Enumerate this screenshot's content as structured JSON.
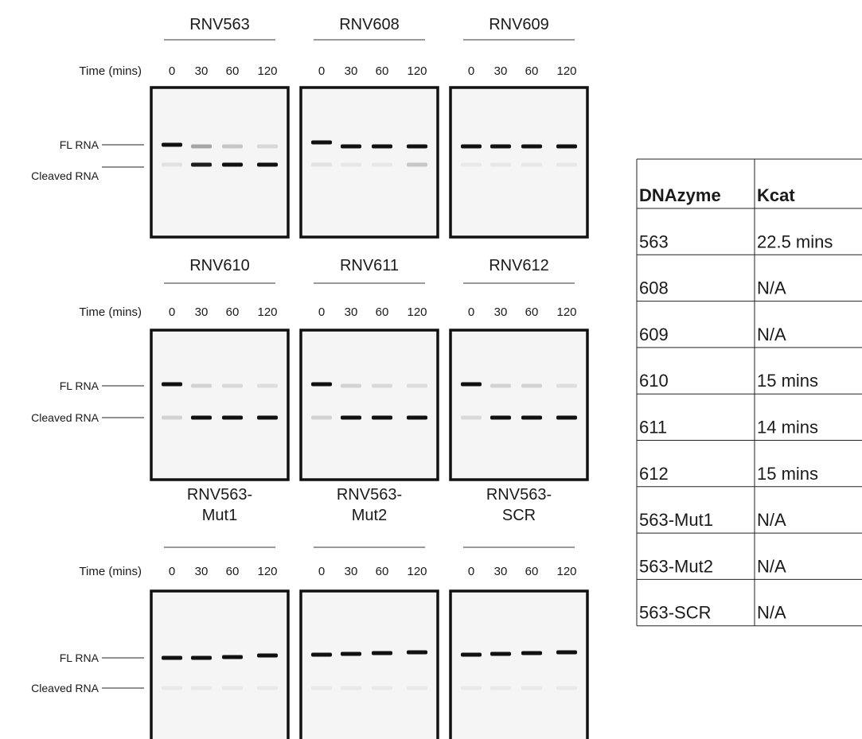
{
  "gel_rows": [
    {
      "time_label": "Time (mins)",
      "fl_label": "FL RNA",
      "cleaved_label": "Cleaved RNA",
      "gels": [
        {
          "title_lines": [
            "RNV563"
          ],
          "times": [
            "0",
            "30",
            "60",
            "120"
          ]
        },
        {
          "title_lines": [
            "RNV608"
          ],
          "times": [
            "0",
            "30",
            "60",
            "120"
          ]
        },
        {
          "title_lines": [
            "RNV609"
          ],
          "times": [
            "0",
            "30",
            "60",
            "120"
          ]
        }
      ]
    },
    {
      "time_label": "Time (mins)",
      "fl_label": "FL RNA",
      "cleaved_label": "Cleaved RNA",
      "gels": [
        {
          "title_lines": [
            "RNV610"
          ],
          "times": [
            "0",
            "30",
            "60",
            "120"
          ]
        },
        {
          "title_lines": [
            "RNV611"
          ],
          "times": [
            "0",
            "30",
            "60",
            "120"
          ]
        },
        {
          "title_lines": [
            "RNV612"
          ],
          "times": [
            "0",
            "30",
            "60",
            "120"
          ]
        }
      ]
    },
    {
      "time_label": "Time (mins)",
      "fl_label": "FL RNA",
      "cleaved_label": "Cleaved RNA",
      "gels": [
        {
          "title_lines": [
            "RNV563-",
            "Mut1"
          ],
          "times": [
            "0",
            "30",
            "60",
            "120"
          ]
        },
        {
          "title_lines": [
            "RNV563-",
            "Mut2"
          ],
          "times": [
            "0",
            "30",
            "60",
            "120"
          ]
        },
        {
          "title_lines": [
            "RNV563-",
            "SCR"
          ],
          "times": [
            "0",
            "30",
            "60",
            "120"
          ]
        }
      ]
    }
  ],
  "table": {
    "header": [
      "DNAzyme",
      "Kcat"
    ],
    "rows": [
      [
        "563",
        "22.5 mins"
      ],
      [
        "608",
        "N/A"
      ],
      [
        "609",
        "N/A"
      ],
      [
        "610",
        "15 mins"
      ],
      [
        "611",
        "14 mins"
      ],
      [
        "612",
        "15 mins"
      ],
      [
        "563-Mut1",
        "N/A"
      ],
      [
        "563-Mut2",
        "N/A"
      ],
      [
        "563-SCR",
        "N/A"
      ]
    ]
  }
}
